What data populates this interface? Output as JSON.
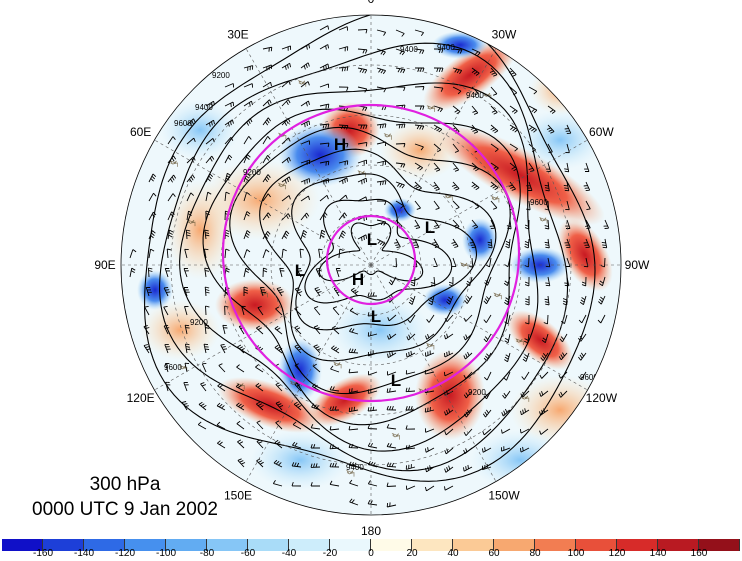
{
  "map": {
    "level_label": "300 hPa",
    "time_label": "0000 UTC 9 Jan 2002",
    "longitude_labels": [
      {
        "text": "0",
        "lon": 0
      },
      {
        "text": "30W",
        "lon": -30
      },
      {
        "text": "60W",
        "lon": -60
      },
      {
        "text": "90W",
        "lon": -90
      },
      {
        "text": "120W",
        "lon": -120
      },
      {
        "text": "150W",
        "lon": -150
      },
      {
        "text": "180",
        "lon": 180
      },
      {
        "text": "150E",
        "lon": 150
      },
      {
        "text": "120E",
        "lon": 120
      },
      {
        "text": "90E",
        "lon": 90
      },
      {
        "text": "60E",
        "lon": 60
      },
      {
        "text": "30E",
        "lon": 30
      }
    ],
    "pressure_centers": [
      "H",
      "L",
      "L",
      "H",
      "L",
      "L",
      "L"
    ],
    "contour_labels": [
      "9400",
      "9400",
      "9200",
      "9600",
      "9400",
      "9200",
      "9600",
      "9400",
      "9200",
      "9600",
      "9200",
      "9600",
      "9400"
    ],
    "colorbar": {
      "colors": [
        "#1010c8",
        "#1d3fd8",
        "#2e6ae6",
        "#4690ee",
        "#62acf2",
        "#86c6f6",
        "#a9dcf8",
        "#cdedfb",
        "#eaf8fd",
        "#fffbe8",
        "#fde6c0",
        "#fbca96",
        "#f7a870",
        "#f27d52",
        "#e8503a",
        "#d72b29",
        "#b91a22",
        "#94101a"
      ],
      "tick_labels": [
        "-160",
        "-140",
        "-120",
        "-100",
        "-80",
        "-60",
        "-40",
        "-20",
        "0",
        "20",
        "40",
        "60",
        "80",
        "100",
        "120",
        "140",
        "160"
      ]
    }
  }
}
